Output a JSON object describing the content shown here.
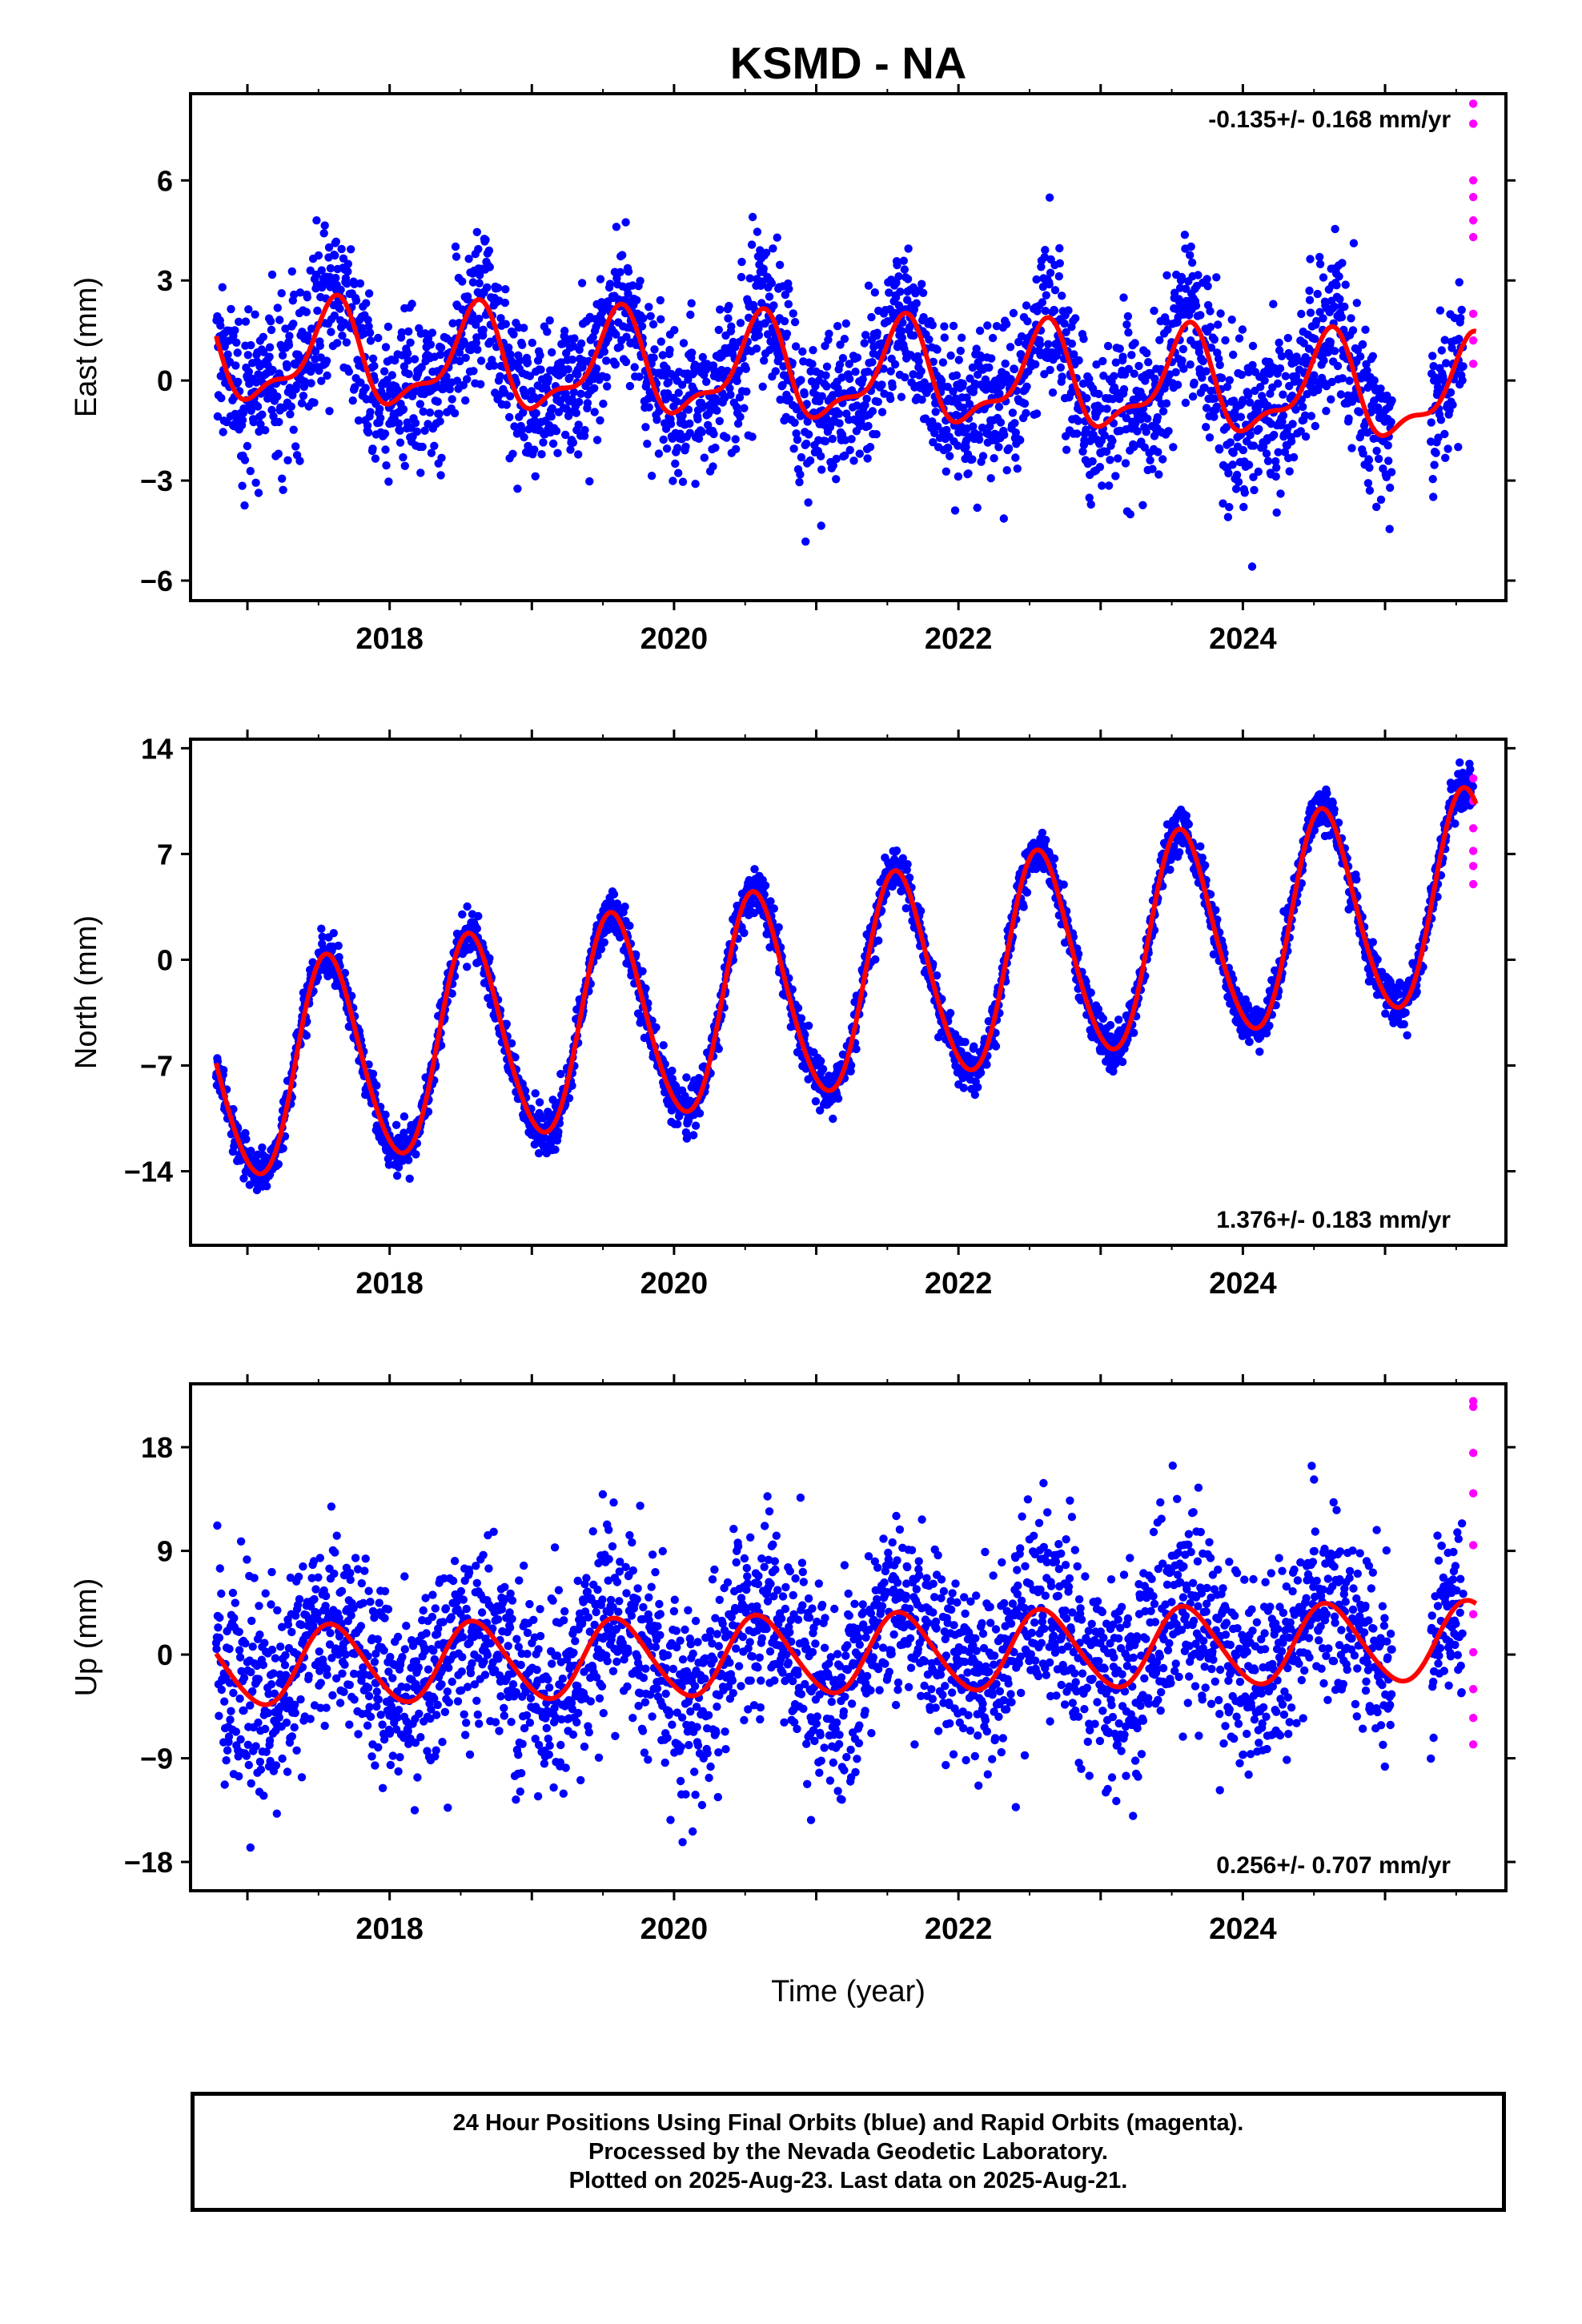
{
  "colors": {
    "final_orbits": "#0000ff",
    "rapid_orbits": "#ff00ff",
    "model_fit": "#ff0000"
  },
  "chart_data": [
    {
      "type": "scatter",
      "title": "KSMD - NA",
      "ylabel": "East (mm)",
      "xlabel": "",
      "xlim": [
        2016.6,
        2025.85
      ],
      "ylim": [
        -6.6,
        8.6
      ],
      "yticks": [
        -6,
        -3,
        0,
        3,
        6
      ],
      "xticks": [
        2018,
        2020,
        2022,
        2024
      ],
      "rate_text": "-0.135+/- 0.168 mm/yr",
      "rate_position": "top-right",
      "grid": false,
      "model": {
        "offset": 0.2,
        "slope": -0.135,
        "t0": 2021.0,
        "a1": 1.4,
        "ph1": 0.0,
        "a2": 0.55,
        "ph2": 0.6,
        "start": 2016.78,
        "end": 2025.64
      },
      "scatter": {
        "start": 2016.78,
        "end": 2025.55,
        "noise": 1.15,
        "gap": [
          2025.05,
          2025.32
        ]
      },
      "rapid_points": [
        {
          "x": 2025.62,
          "y": 8.3
        },
        {
          "x": 2025.62,
          "y": 7.7
        },
        {
          "x": 2025.62,
          "y": 6.0
        },
        {
          "x": 2025.62,
          "y": 5.5
        },
        {
          "x": 2025.62,
          "y": 4.8
        },
        {
          "x": 2025.62,
          "y": 4.3
        },
        {
          "x": 2025.62,
          "y": 2.0
        },
        {
          "x": 2025.62,
          "y": 1.2
        },
        {
          "x": 2025.62,
          "y": 0.5
        }
      ]
    },
    {
      "type": "scatter",
      "title": "",
      "ylabel": "North (mm)",
      "xlabel": "",
      "xlim": [
        2016.6,
        2025.85
      ],
      "ylim": [
        -18.9,
        14.6
      ],
      "yticks": [
        -14,
        -7,
        0,
        7,
        14
      ],
      "xticks": [
        2018,
        2020,
        2022,
        2024
      ],
      "rate_text": "1.376+/- 0.183 mm/yr",
      "rate_position": "bottom-right",
      "grid": false,
      "model": {
        "offset": -2.2,
        "slope": 1.376,
        "t0": 2021.0,
        "a1": 6.9,
        "ph1": 0.3,
        "a2": 0.6,
        "ph2": 0.0,
        "start": 2016.78,
        "end": 2025.64
      },
      "scatter": {
        "start": 2016.78,
        "end": 2025.62,
        "noise": 0.75,
        "gap": []
      },
      "rapid_points": [
        {
          "x": 2025.62,
          "y": 12.0
        },
        {
          "x": 2025.62,
          "y": 10.5
        },
        {
          "x": 2025.62,
          "y": 8.7
        },
        {
          "x": 2025.62,
          "y": 7.2
        },
        {
          "x": 2025.62,
          "y": 6.2
        },
        {
          "x": 2025.62,
          "y": 5.0
        }
      ]
    },
    {
      "type": "scatter",
      "title": "",
      "ylabel": "Up (mm)",
      "xlabel": "Time (year)",
      "xlim": [
        2016.6,
        2025.85
      ],
      "ylim": [
        -20.5,
        23.5
      ],
      "yticks": [
        -18,
        -9,
        0,
        9,
        18
      ],
      "xticks": [
        2018,
        2020,
        2022,
        2024
      ],
      "rate_text": "0.256+/- 0.707 mm/yr",
      "rate_position": "bottom-right",
      "grid": false,
      "model": {
        "offset": 0.0,
        "slope": 0.256,
        "t0": 2021.0,
        "a1": 3.4,
        "ph1": 0.0,
        "a2": 0.3,
        "ph2": 0.0,
        "start": 2016.78,
        "end": 2025.64
      },
      "scatter": {
        "start": 2016.78,
        "end": 2025.55,
        "noise": 4.3,
        "gap": [
          2025.05,
          2025.32
        ]
      },
      "rapid_points": [
        {
          "x": 2025.62,
          "y": 22.0
        },
        {
          "x": 2025.62,
          "y": 21.5
        },
        {
          "x": 2025.62,
          "y": 17.5
        },
        {
          "x": 2025.62,
          "y": 14.0
        },
        {
          "x": 2025.62,
          "y": 9.5
        },
        {
          "x": 2025.62,
          "y": 3.5
        },
        {
          "x": 2025.62,
          "y": 0.2
        },
        {
          "x": 2025.62,
          "y": -3.0
        },
        {
          "x": 2025.62,
          "y": -5.5
        },
        {
          "x": 2025.62,
          "y": -7.8
        }
      ]
    }
  ],
  "caption": {
    "line1": "24 Hour Positions Using Final Orbits (blue) and Rapid Orbits (magenta).",
    "line2": "Processed by the Nevada Geodetic Laboratory.",
    "line3": "Plotted on 2025-Aug-23. Last data on 2025-Aug-21."
  }
}
